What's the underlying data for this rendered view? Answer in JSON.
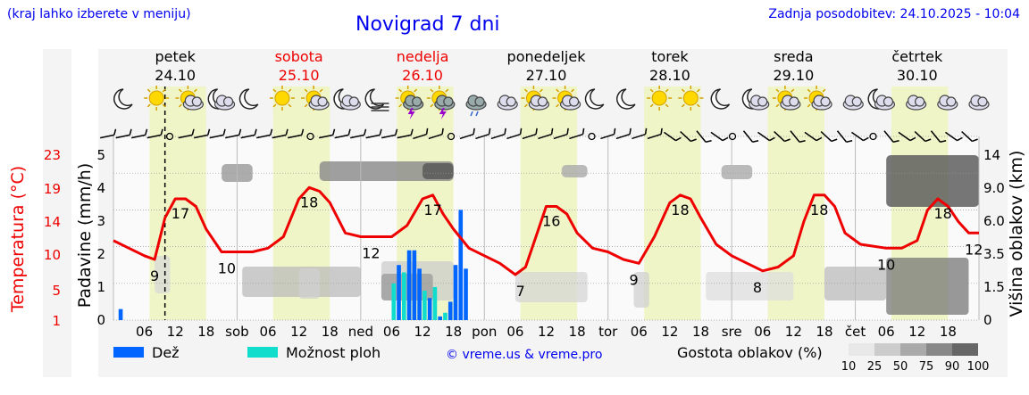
{
  "header": {
    "hint": "(kraj lahko izberete v meniju)",
    "title": "Novigrad 7 dni",
    "updated": "Zadnja posodobitev: 24.10.2025 - 10:04"
  },
  "colors": {
    "blue": "#0000ee",
    "weekend": "#ee0000",
    "temp_line": "#ee0000",
    "rain": "#0066ff",
    "storm": "#11ddcc",
    "daylight": "#f0f5c8"
  },
  "legend": {
    "rain": "Dež",
    "storm": "Možnost ploh",
    "credit": "© vreme.us & vreme.pro",
    "cloud_title": "Gostota oblakov (%)",
    "cloud_levels": [
      "10",
      "25",
      "50",
      "75",
      "90",
      "100"
    ],
    "cloud_colors": [
      "#e8e8e8",
      "#cccccc",
      "#aaaaaa",
      "#888888",
      "#666666",
      "#444444"
    ]
  },
  "chart_data": {
    "type": "line",
    "days": [
      {
        "name": "petek",
        "date": "24.10",
        "weekend": false
      },
      {
        "name": "sobota",
        "date": "25.10",
        "weekend": true
      },
      {
        "name": "nedelja",
        "date": "26.10",
        "weekend": true
      },
      {
        "name": "ponedeljek",
        "date": "27.10",
        "weekend": false
      },
      {
        "name": "torek",
        "date": "28.10",
        "weekend": false
      },
      {
        "name": "sreda",
        "date": "29.10",
        "weekend": false
      },
      {
        "name": "četrtek",
        "date": "30.10",
        "weekend": false
      }
    ],
    "x_tick_labels": [
      "06",
      "12",
      "18",
      "sob",
      "06",
      "12",
      "18",
      "ned",
      "06",
      "12",
      "18",
      "pon",
      "06",
      "12",
      "18",
      "tor",
      "06",
      "12",
      "18",
      "sre",
      "06",
      "12",
      "18",
      "čet",
      "06",
      "12",
      "18"
    ],
    "y_left_temp": {
      "label": "Temperatura (°C)",
      "ticks": [
        "1",
        "5",
        "10",
        "14",
        "19",
        "23"
      ]
    },
    "y_left_precip": {
      "label": "Padavine (mm/h)",
      "ticks": [
        "0",
        "1",
        "2",
        "3",
        "4",
        "5"
      ],
      "range": [
        0,
        5
      ]
    },
    "y_right": {
      "label": "Višina oblakov (km)",
      "ticks": [
        "0",
        "1.5",
        "3.5",
        "6.0",
        "9.0",
        "14"
      ]
    },
    "temperature_curve": [
      [
        0,
        11.5
      ],
      [
        3,
        10.5
      ],
      [
        6,
        9.5
      ],
      [
        8,
        9.0
      ],
      [
        10,
        14.5
      ],
      [
        12,
        17.0
      ],
      [
        14,
        17.0
      ],
      [
        16,
        16.0
      ],
      [
        18,
        13.0
      ],
      [
        21,
        10.0
      ],
      [
        24,
        10.0
      ],
      [
        27,
        10.0
      ],
      [
        30,
        10.5
      ],
      [
        33,
        12.0
      ],
      [
        36,
        17.0
      ],
      [
        38,
        18.5
      ],
      [
        40,
        18.0
      ],
      [
        42,
        16.5
      ],
      [
        45,
        12.5
      ],
      [
        48,
        12.0
      ],
      [
        51,
        12.0
      ],
      [
        54,
        12.0
      ],
      [
        57,
        13.5
      ],
      [
        60,
        17.0
      ],
      [
        62,
        17.5
      ],
      [
        64,
        15.0
      ],
      [
        66,
        13.0
      ],
      [
        69,
        10.5
      ],
      [
        72,
        9.5
      ],
      [
        75,
        8.5
      ],
      [
        78,
        7.0
      ],
      [
        80,
        8.0
      ],
      [
        82,
        12.0
      ],
      [
        84,
        16.0
      ],
      [
        86,
        16.0
      ],
      [
        88,
        15.0
      ],
      [
        90,
        12.5
      ],
      [
        93,
        10.5
      ],
      [
        96,
        10.0
      ],
      [
        99,
        9.0
      ],
      [
        102,
        8.5
      ],
      [
        105,
        12.0
      ],
      [
        108,
        16.5
      ],
      [
        110,
        17.5
      ],
      [
        112,
        17.0
      ],
      [
        114,
        14.5
      ],
      [
        117,
        11.0
      ],
      [
        120,
        9.5
      ],
      [
        123,
        8.5
      ],
      [
        126,
        7.5
      ],
      [
        129,
        8.0
      ],
      [
        132,
        9.5
      ],
      [
        134,
        14.0
      ],
      [
        136,
        17.5
      ],
      [
        138,
        17.5
      ],
      [
        140,
        16.0
      ],
      [
        142,
        12.5
      ],
      [
        145,
        11.0
      ],
      [
        150,
        10.5
      ],
      [
        153,
        10.5
      ],
      [
        156,
        11.5
      ],
      [
        158,
        15.5
      ],
      [
        160,
        17.0
      ],
      [
        162,
        16.0
      ],
      [
        164,
        14.0
      ],
      [
        166,
        12.5
      ],
      [
        168,
        12.5
      ]
    ],
    "temperature_labels": [
      {
        "t": 8,
        "value": "9"
      },
      {
        "t": 13,
        "value": "17"
      },
      {
        "t": 22,
        "value": "10"
      },
      {
        "t": 38,
        "value": "18"
      },
      {
        "t": 50,
        "value": "12"
      },
      {
        "t": 62,
        "value": "17"
      },
      {
        "t": 79,
        "value": "7"
      },
      {
        "t": 85,
        "value": "16"
      },
      {
        "t": 101,
        "value": "9"
      },
      {
        "t": 110,
        "value": "18"
      },
      {
        "t": 125,
        "value": "8"
      },
      {
        "t": 137,
        "value": "18"
      },
      {
        "t": 150,
        "value": "10"
      },
      {
        "t": 161,
        "value": "18"
      },
      {
        "t": 167,
        "value": "12"
      }
    ],
    "precipitation_rain": [
      [
        1,
        0.3
      ],
      [
        55,
        1.5
      ],
      [
        57,
        1.9
      ],
      [
        58,
        1.9
      ],
      [
        59,
        1.4
      ],
      [
        61,
        0.6
      ],
      [
        63,
        0.1
      ],
      [
        65,
        0.5
      ],
      [
        66,
        1.5
      ],
      [
        67,
        3.0
      ],
      [
        68,
        1.4
      ]
    ],
    "precipitation_storm": [
      [
        54,
        1.0
      ],
      [
        56,
        1.3
      ],
      [
        60,
        0.8
      ],
      [
        62,
        0.9
      ],
      [
        64,
        0.2
      ]
    ]
  }
}
